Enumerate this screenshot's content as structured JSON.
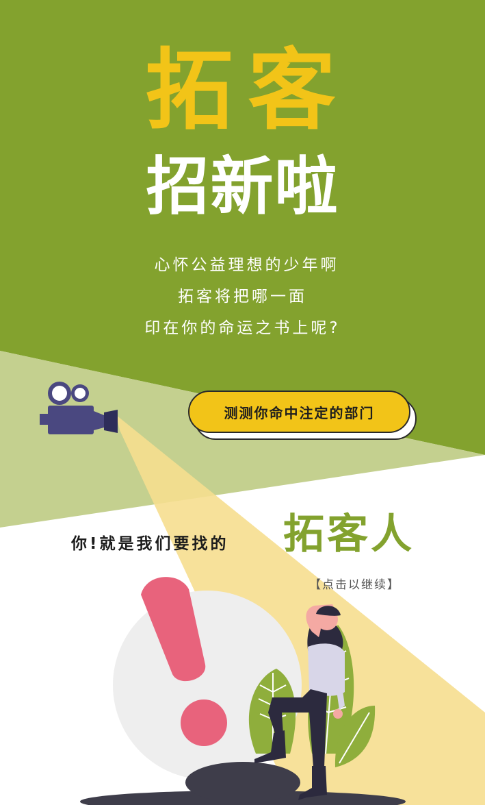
{
  "colors": {
    "green": "#83a22e",
    "light_green": "#c4d08f",
    "yellow": "#f2c418",
    "beam": "#f6de8f",
    "white": "#ffffff",
    "camera": "#4a4880",
    "alert": "#e8637c",
    "shadow": "#3e3d4a",
    "circle": "#eeeeee",
    "leaf": "#8fae3c"
  },
  "title": {
    "main": "拓客",
    "sub": "招新啦"
  },
  "poem": {
    "line1": "心怀公益理想的少年啊",
    "line2": "拓客将把哪一面",
    "line3": "印在你的命运之书上呢?"
  },
  "cta": {
    "label": "测测你命中注定的部门"
  },
  "slogan": {
    "lead": "你!就是我们要找的",
    "highlight": "拓客人"
  },
  "continue": {
    "label": "【点击以继续】"
  },
  "icons": {
    "camera": "movie-camera-icon",
    "alert": "exclamation-mark-icon"
  }
}
